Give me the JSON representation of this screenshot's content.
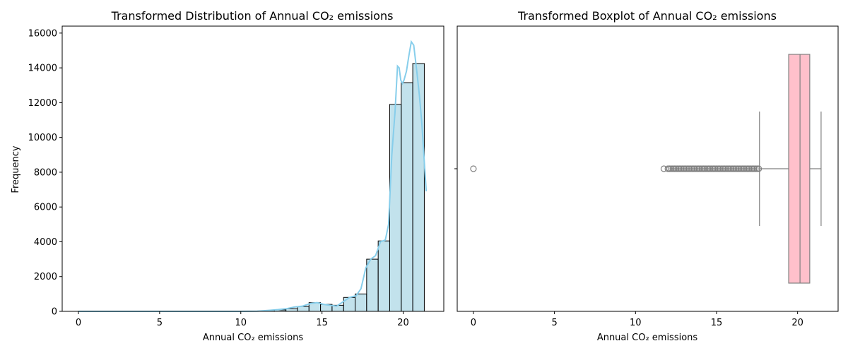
{
  "chart_data": [
    {
      "type": "histogram",
      "title": "Transformed Distribution of Annual CO₂ emissions",
      "xlabel": "Annual CO₂ emissions",
      "ylabel": "Frequency",
      "xlim": [
        -1.0,
        22.5
      ],
      "ylim": [
        0,
        16400
      ],
      "xticks": [
        0,
        5,
        10,
        15,
        20
      ],
      "yticks": [
        0,
        2000,
        4000,
        6000,
        8000,
        10000,
        12000,
        14000,
        16000
      ],
      "bin_width": 0.71,
      "bin_starts": [
        0.0,
        0.71,
        1.42,
        2.13,
        2.84,
        3.55,
        4.26,
        4.97,
        5.68,
        6.39,
        7.1,
        7.81,
        8.52,
        9.23,
        9.94,
        10.65,
        11.36,
        12.07,
        12.78,
        13.49,
        14.2,
        14.91,
        15.62,
        16.33,
        17.04,
        17.75,
        18.46,
        19.17,
        19.88,
        20.59
      ],
      "counts": [
        5,
        0,
        0,
        0,
        0,
        0,
        0,
        0,
        0,
        0,
        0,
        0,
        0,
        0,
        0,
        0,
        10,
        80,
        150,
        280,
        500,
        400,
        350,
        800,
        1000,
        3000,
        4050,
        11900,
        13150,
        14250
      ],
      "bar_fill": "#add8e6",
      "kde": {
        "color": "#87ceeb",
        "x": [
          0,
          2,
          4,
          6,
          8,
          10,
          11,
          11.8,
          12.3,
          12.8,
          13.3,
          13.8,
          14.3,
          14.7,
          15.1,
          15.5,
          15.9,
          16.3,
          16.7,
          17.1,
          17.4,
          17.7,
          18.0,
          18.3,
          18.6,
          18.9,
          19.1,
          19.3,
          19.5,
          19.65,
          19.75,
          19.85,
          19.95,
          20.05,
          20.2,
          20.35,
          20.5,
          20.65,
          20.75,
          20.85,
          21.0,
          21.15,
          21.3,
          21.42
        ],
        "y": [
          0,
          0,
          0,
          0,
          0,
          0,
          10,
          60,
          100,
          150,
          250,
          300,
          450,
          500,
          400,
          350,
          300,
          550,
          800,
          900,
          1300,
          2500,
          3000,
          3200,
          4000,
          4100,
          5000,
          9000,
          11500,
          14100,
          14000,
          13300,
          13100,
          13300,
          13800,
          14700,
          15500,
          15300,
          14500,
          13700,
          12400,
          10800,
          8600,
          6900
        ]
      }
    },
    {
      "type": "boxplot",
      "title": "Transformed Boxplot of Annual CO₂ emissions",
      "xlabel": "Annual CO₂ emissions",
      "xlim": [
        -1.0,
        22.5
      ],
      "xticks": [
        0,
        5,
        10,
        15,
        20
      ],
      "q1": 19.45,
      "median": 20.15,
      "q3": 20.75,
      "whisker_low": 17.65,
      "whisker_high": 21.45,
      "outliers": [
        0.0,
        11.75,
        12.0,
        12.1,
        12.2,
        12.3,
        12.4,
        12.5,
        12.6,
        12.7,
        12.8,
        12.9,
        13.0,
        13.1,
        13.2,
        13.3,
        13.4,
        13.5,
        13.6,
        13.7,
        13.8,
        13.9,
        14.0,
        14.1,
        14.2,
        14.3,
        14.4,
        14.5,
        14.6,
        14.7,
        14.8,
        14.9,
        15.0,
        15.1,
        15.2,
        15.3,
        15.4,
        15.5,
        15.6,
        15.7,
        15.8,
        15.9,
        16.0,
        16.1,
        16.2,
        16.3,
        16.4,
        16.5,
        16.6,
        16.7,
        16.8,
        16.9,
        17.0,
        17.1,
        17.2,
        17.3,
        17.4,
        17.5,
        17.6
      ],
      "box_fill": "#ffc0cb",
      "line_color": "#808080"
    }
  ]
}
